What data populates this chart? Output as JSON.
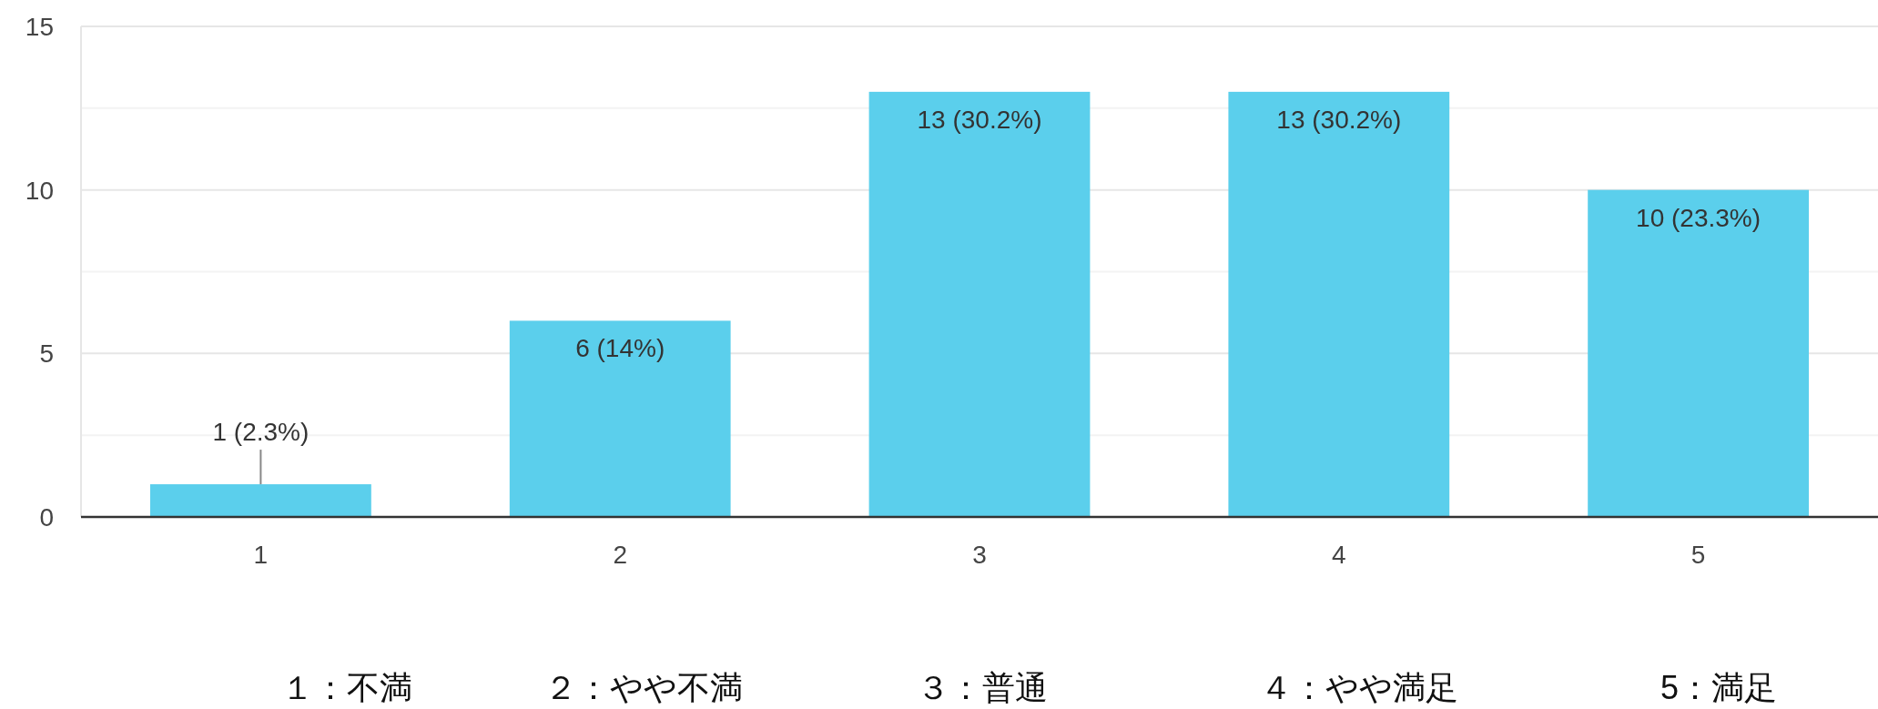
{
  "chart_data": {
    "type": "bar",
    "categories": [
      "1",
      "2",
      "3",
      "4",
      "5"
    ],
    "values": [
      1,
      6,
      13,
      13,
      10
    ],
    "value_labels": [
      "1 (2.3%)",
      "6 (14%)",
      "13 (30.2%)",
      "13 (30.2%)",
      "10 (23.3%)"
    ],
    "color": "#5bcfec",
    "ylim": [
      0,
      15
    ],
    "yticks": [
      0,
      {
        "value": 2.5,
        "label": null
      },
      5,
      {
        "value": 7.5,
        "label": null
      },
      10,
      {
        "value": 12.5,
        "label": null
      },
      15
    ],
    "grid": "y",
    "annotations": [
      "１：不満",
      "２：やや不満",
      "３：普通",
      "４：やや満足",
      "5：満足"
    ]
  }
}
